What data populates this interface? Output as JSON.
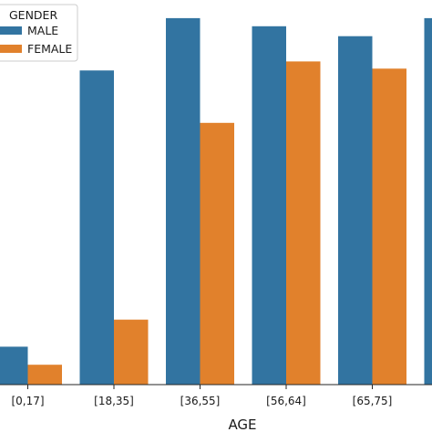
{
  "chart_data": {
    "type": "bar",
    "title": "",
    "xlabel": "AGE",
    "ylabel": "",
    "categories": [
      "[0,17]",
      "[18,35]",
      "[36,55]",
      "[56,64]",
      "[65,75]",
      ""
    ],
    "series": [
      {
        "name": "MALE",
        "color": "#3274a1",
        "values": [
          42,
          348,
          406,
          397,
          386,
          406
        ]
      },
      {
        "name": "FEMALE",
        "color": "#e1812c",
        "values": [
          22,
          72,
          290,
          358,
          350,
          null
        ]
      }
    ],
    "ylim": [
      0,
      420
    ],
    "grid": false,
    "legend": {
      "title": "GENDER",
      "placement": "top-left"
    }
  }
}
